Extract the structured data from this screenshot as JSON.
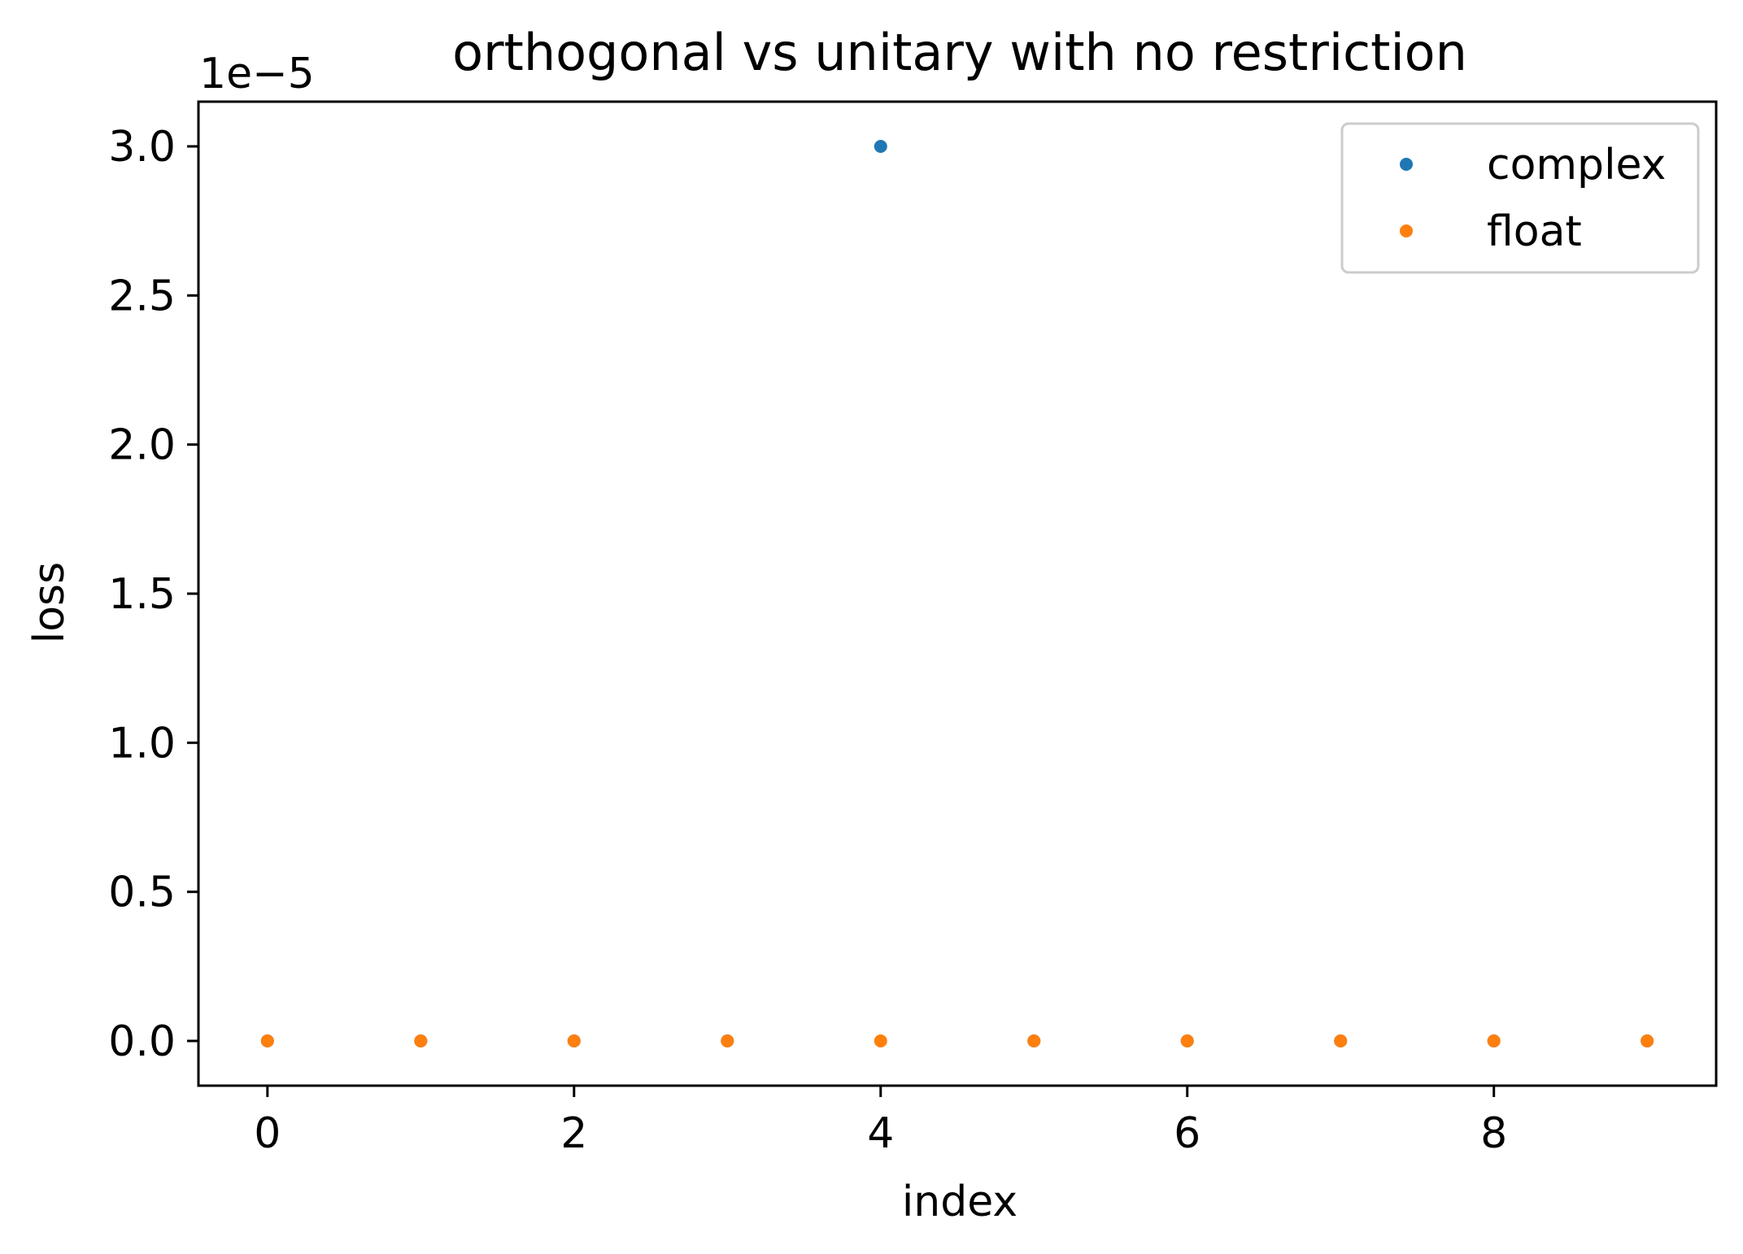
{
  "chart_data": {
    "type": "scatter",
    "title": "orthogonal vs unitary with no restriction",
    "xlabel": "index",
    "ylabel": "loss",
    "offset_text": "1e−5",
    "xlim": [
      -0.45,
      9.45
    ],
    "ylim": [
      -1.5e-06,
      3.15e-05
    ],
    "x_ticks": [
      0,
      2,
      4,
      6,
      8
    ],
    "x_tick_labels": [
      "0",
      "2",
      "4",
      "6",
      "8"
    ],
    "y_ticks": [
      0,
      5e-06,
      1e-05,
      1.5e-05,
      2e-05,
      2.5e-05,
      3e-05
    ],
    "y_tick_labels": [
      "0.0",
      "0.5",
      "1.0",
      "1.5",
      "2.0",
      "2.5",
      "3.0"
    ],
    "grid": false,
    "legend_position": "top-right",
    "series": [
      {
        "name": "complex",
        "color": "#1f77b4",
        "x": [
          0,
          1,
          2,
          3,
          4,
          5,
          6,
          7,
          8,
          9
        ],
        "y": [
          0,
          0,
          0,
          0,
          3e-05,
          0,
          0,
          0,
          0,
          0
        ]
      },
      {
        "name": "float",
        "color": "#ff7f0e",
        "x": [
          0,
          1,
          2,
          3,
          4,
          5,
          6,
          7,
          8,
          9
        ],
        "y": [
          0,
          0,
          0,
          0,
          0,
          0,
          0,
          0,
          0,
          0
        ]
      }
    ]
  }
}
